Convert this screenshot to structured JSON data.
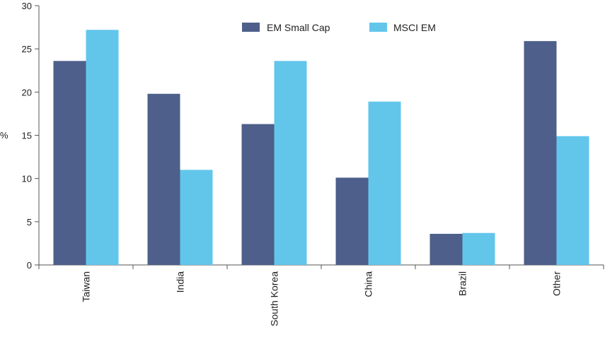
{
  "chart_data": {
    "type": "bar",
    "title": "",
    "xlabel": "",
    "ylabel": "%",
    "ylim": [
      0,
      30
    ],
    "yticks": [
      0,
      5,
      10,
      15,
      20,
      25,
      30
    ],
    "categories": [
      "Taiwan",
      "India",
      "South Korea",
      "China",
      "Brazil",
      "Other"
    ],
    "series": [
      {
        "name": "EM Small Cap",
        "color": "#4d5f8a",
        "values": [
          23.6,
          19.8,
          16.3,
          10.1,
          3.6,
          25.9
        ]
      },
      {
        "name": "MSCI EM",
        "color": "#62c6eb",
        "values": [
          27.2,
          11.0,
          23.6,
          18.9,
          3.7,
          14.9
        ]
      }
    ],
    "legend": {
      "position": "top-center"
    },
    "grid": false
  }
}
